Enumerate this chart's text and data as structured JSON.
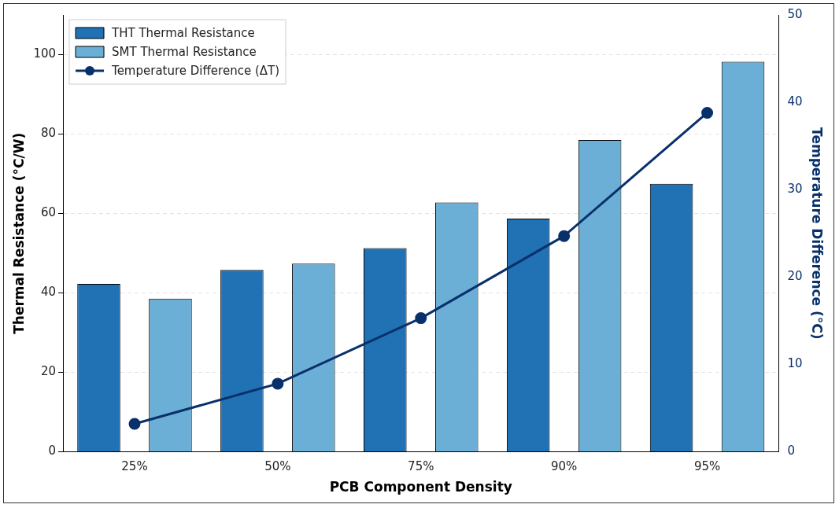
{
  "chart_data": {
    "type": "bar",
    "xlabel": "PCB Component Density",
    "ylabel": "Thermal Resistance (°C/W)",
    "y2label": "Temperature Difference (°C)",
    "categories": [
      "25%",
      "50%",
      "75%",
      "90%",
      "95%"
    ],
    "series": [
      {
        "name": "THT Thermal Resistance",
        "color": "#2171b5",
        "values": [
          42.3,
          45.8,
          51.3,
          58.7,
          67.5
        ]
      },
      {
        "name": "SMT Thermal Resistance",
        "color": "#6baed6",
        "values": [
          38.6,
          47.4,
          62.8,
          78.5,
          98.2
        ]
      },
      {
        "name": "Temperature Difference (ΔT)",
        "type": "line",
        "axis": "y2",
        "color": "#08306b",
        "values": [
          3.2,
          7.8,
          15.3,
          24.7,
          38.8
        ]
      }
    ],
    "ylim": [
      0,
      110
    ],
    "yticks": [
      0,
      20,
      40,
      60,
      80,
      100
    ],
    "y2lim": [
      0,
      50
    ],
    "y2ticks": [
      0,
      10,
      20,
      30,
      40,
      50
    ],
    "grid": "y",
    "legend": "top left",
    "marker": "circle",
    "line_style": "solid"
  }
}
